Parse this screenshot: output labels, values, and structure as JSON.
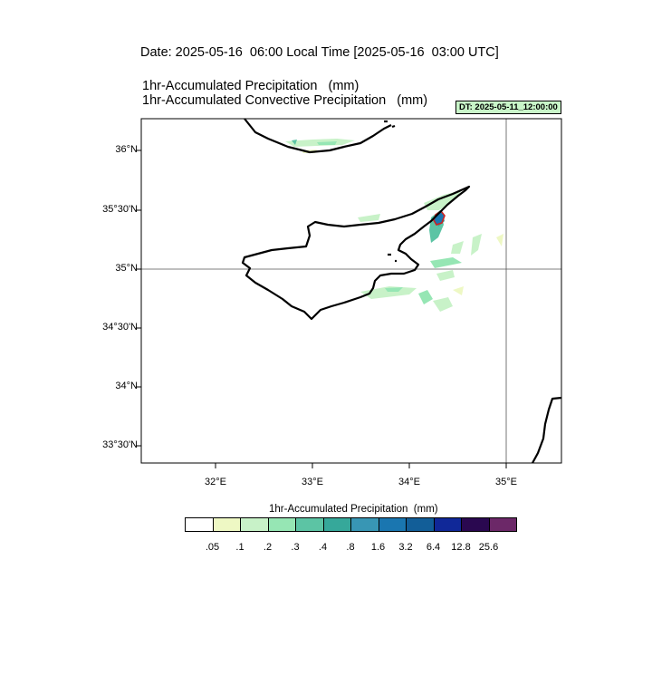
{
  "titles": {
    "date": "Date: 2025-05-16  06:00 Local Time [2025-05-16  03:00 UTC]",
    "var1": "1hr-Accumulated Precipitation   (mm)",
    "var2": "1hr-Accumulated Convective Precipitation   (mm)",
    "dt_badge": "DT: 2025-05-11_12:00:00"
  },
  "map": {
    "lat_labels": [
      "36°N",
      "35°30'N",
      "35°N",
      "34°30'N",
      "34°N",
      "33°30'N"
    ],
    "lon_labels": [
      "32°E",
      "33°E",
      "34°E",
      "35°E"
    ],
    "gridlines": {
      "lat": "35°N",
      "lon": "35°E"
    },
    "convective_highlight_color": "#cc2222"
  },
  "legend": {
    "title": "1hr-Accumulated Precipitation  (mm)",
    "labels": [
      ".05",
      ".1",
      ".2",
      ".3",
      ".4",
      ".8",
      "1.6",
      "3.2",
      "6.4",
      "12.8",
      "25.6"
    ],
    "colors": [
      "#ffffff",
      "#eef8c4",
      "#c8f2c8",
      "#96e6b4",
      "#5cc4a4",
      "#36a89a",
      "#3896b4",
      "#1a76b0",
      "#125e98",
      "#102898",
      "#2a0850",
      "#6c2868"
    ]
  }
}
